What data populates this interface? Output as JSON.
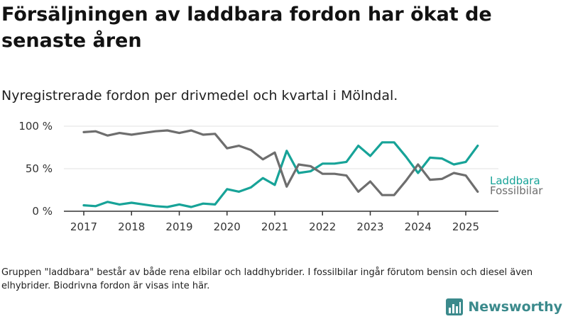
{
  "title": "Försäljningen av laddbara fordon har ökat de senaste åren",
  "subtitle": "Nyregistrerade fordon per drivmedel och kvartal i Mölndal.",
  "footnote": "Gruppen \"laddbara\" består av både rena elbilar och laddhybrider. I fossilbilar ingår förutom bensin och diesel även elhybrider. Biodrivna fordon är visas inte här.",
  "brand": {
    "name": "Newsworthy",
    "icon": "bar-chart-logo-icon"
  },
  "colors": {
    "laddbara": "#17a398",
    "fossilbilar": "#6e6e6e",
    "grid": "#e2e2e2",
    "axis": "#333333",
    "brand": "#3b8a8c"
  },
  "chart_data": {
    "type": "line",
    "title": "Nyregistrerade fordon per drivmedel och kvartal i Mölndal.",
    "xlabel": "",
    "ylabel": "",
    "x": [
      "2017-Q1",
      "2017-Q2",
      "2017-Q3",
      "2017-Q4",
      "2018-Q1",
      "2018-Q2",
      "2018-Q3",
      "2018-Q4",
      "2019-Q1",
      "2019-Q2",
      "2019-Q3",
      "2019-Q4",
      "2020-Q1",
      "2020-Q2",
      "2020-Q3",
      "2020-Q4",
      "2021-Q1",
      "2021-Q2",
      "2021-Q3",
      "2021-Q4",
      "2022-Q1",
      "2022-Q2",
      "2022-Q3",
      "2022-Q4",
      "2023-Q1",
      "2023-Q2",
      "2023-Q3",
      "2023-Q4",
      "2024-Q1",
      "2024-Q2",
      "2024-Q3",
      "2024-Q4",
      "2025-Q1",
      "2025-Q2"
    ],
    "xticks": [
      "2017",
      "2018",
      "2019",
      "2020",
      "2021",
      "2022",
      "2023",
      "2024",
      "2025"
    ],
    "yticks": [
      {
        "value": 0,
        "label": "0 %"
      },
      {
        "value": 50,
        "label": "50 %"
      },
      {
        "value": 100,
        "label": "100 %"
      }
    ],
    "ylim": [
      0,
      100
    ],
    "grid": true,
    "series": [
      {
        "name": "Laddbara",
        "color": "#17a398",
        "values": [
          7,
          6,
          11,
          8,
          10,
          8,
          6,
          5,
          8,
          5,
          9,
          8,
          26,
          23,
          28,
          39,
          31,
          71,
          45,
          47,
          56,
          56,
          58,
          77,
          65,
          81,
          81,
          64,
          45,
          63,
          62,
          55,
          58,
          77
        ]
      },
      {
        "name": "Fossilbilar",
        "color": "#6e6e6e",
        "values": [
          93,
          94,
          89,
          92,
          90,
          92,
          94,
          95,
          92,
          95,
          90,
          91,
          74,
          77,
          72,
          61,
          69,
          29,
          55,
          53,
          44,
          44,
          42,
          23,
          35,
          19,
          19,
          36,
          55,
          37,
          38,
          45,
          42,
          23
        ]
      }
    ]
  }
}
